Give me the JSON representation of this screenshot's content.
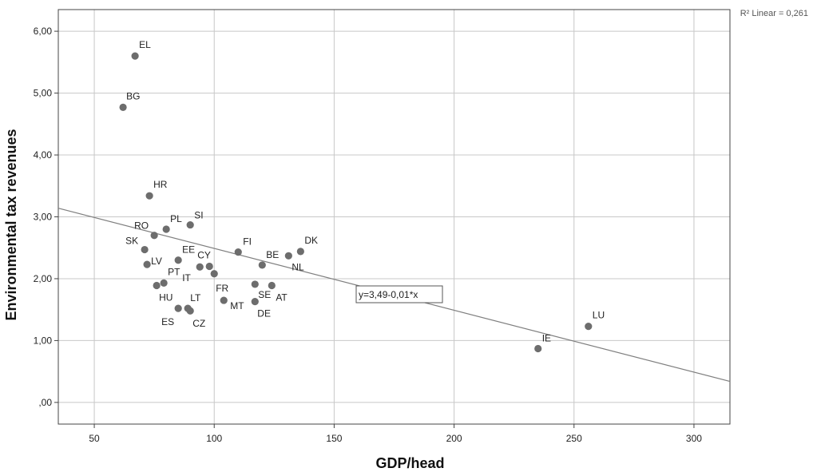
{
  "chart_data": {
    "type": "scatter",
    "xlabel": "GDP/head",
    "ylabel": "Environmental tax revenues",
    "xlim": [
      35,
      315
    ],
    "ylim": [
      -0.35,
      6.35
    ],
    "x_ticks": [
      50,
      100,
      150,
      200,
      250,
      300
    ],
    "x_tick_labels": [
      "50",
      "100",
      "150",
      "200",
      "250",
      "300"
    ],
    "y_ticks": [
      0,
      1,
      2,
      3,
      4,
      5,
      6
    ],
    "y_tick_labels": [
      ",00",
      "1,00",
      "2,00",
      "3,00",
      "4,00",
      "5,00",
      "6,00"
    ],
    "grid": true,
    "points": [
      {
        "label": "EL",
        "x": 67,
        "y": 5.6
      },
      {
        "label": "BG",
        "x": 62,
        "y": 4.77
      },
      {
        "label": "HR",
        "x": 73,
        "y": 3.34
      },
      {
        "label": "SI",
        "x": 90,
        "y": 2.87
      },
      {
        "label": "PL",
        "x": 80,
        "y": 2.8
      },
      {
        "label": "RO",
        "x": 75,
        "y": 2.7
      },
      {
        "label": "SK",
        "x": 71,
        "y": 2.47
      },
      {
        "label": "LV",
        "x": 72,
        "y": 2.23
      },
      {
        "label": "EE",
        "x": 85,
        "y": 2.3
      },
      {
        "label": "CY",
        "x": 98,
        "y": 2.2
      },
      {
        "label": "IT",
        "x": 94,
        "y": 2.19
      },
      {
        "label": "FI",
        "x": 110,
        "y": 2.43
      },
      {
        "label": "BE",
        "x": 120,
        "y": 2.22
      },
      {
        "label": "DK",
        "x": 136,
        "y": 2.44
      },
      {
        "label": "NL",
        "x": 131,
        "y": 2.37
      },
      {
        "label": "AT",
        "x": 124,
        "y": 1.89
      },
      {
        "label": "SE",
        "x": 117,
        "y": 1.91
      },
      {
        "label": "PT",
        "x": 79,
        "y": 1.93
      },
      {
        "label": "HU",
        "x": 76,
        "y": 1.89
      },
      {
        "label": "FR",
        "x": 100,
        "y": 2.08
      },
      {
        "label": "MT",
        "x": 104,
        "y": 1.65
      },
      {
        "label": "DE",
        "x": 117,
        "y": 1.63
      },
      {
        "label": "LT",
        "x": 89,
        "y": 1.52
      },
      {
        "label": "ES",
        "x": 85,
        "y": 1.52
      },
      {
        "label": "CZ",
        "x": 90,
        "y": 1.48
      },
      {
        "label": "IE",
        "x": 235,
        "y": 0.87
      },
      {
        "label": "LU",
        "x": 256,
        "y": 1.23
      }
    ],
    "fit_line": {
      "intercept": 3.49,
      "slope": -0.01,
      "equation": "y=3,49-0,01*x"
    },
    "r2_text": "R² Linear = 0,261",
    "marker_color": "#6d6d6d",
    "line_color": "#7f7f7f",
    "grid_color": "#c8c8c8"
  }
}
